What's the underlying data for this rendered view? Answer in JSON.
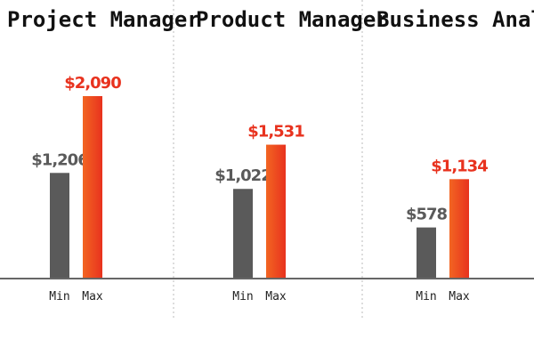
{
  "chart_data": {
    "type": "bar",
    "categories": [
      "Min",
      "Max"
    ],
    "panels": [
      {
        "title": "Project Manager",
        "values": [
          1206,
          2090
        ],
        "labels": [
          "$1,206",
          "$2,090"
        ]
      },
      {
        "title": "Product Manager",
        "values": [
          1022,
          1531
        ],
        "labels": [
          "$1,022",
          "$1,531"
        ]
      },
      {
        "title": "Business Analyst",
        "values": [
          578,
          1134
        ],
        "labels": [
          "$578",
          "$1,134"
        ]
      }
    ],
    "ylim": [
      0,
      2090
    ],
    "grid": false,
    "legend": "none"
  },
  "colors": {
    "min_bar": "#5a5a5a",
    "max_bar_top": "#f26522",
    "max_bar_bottom": "#e8321e",
    "min_label": "#5a5a5a",
    "max_label": "#e8321e"
  }
}
